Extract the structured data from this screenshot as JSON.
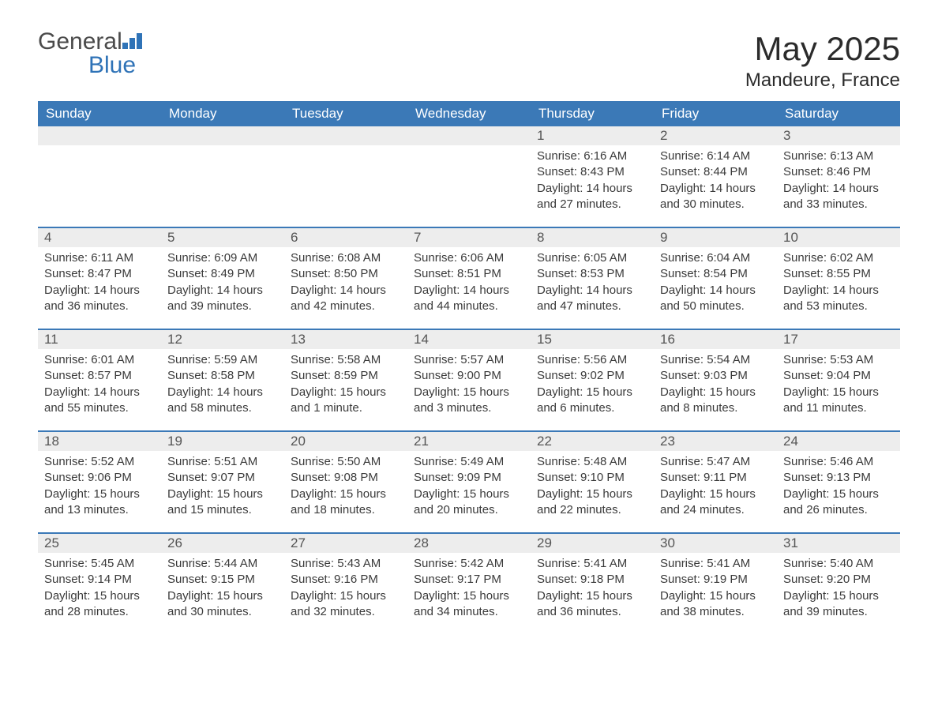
{
  "brand": {
    "name_part1": "General",
    "name_part2": "Blue"
  },
  "title": "May 2025",
  "location": "Mandeure, France",
  "colors": {
    "header_bg": "#3b79b7",
    "header_text": "#ffffff",
    "row_border": "#3b79b7",
    "daynum_bg": "#ededed",
    "daynum_text": "#555555",
    "body_text": "#3a3a3a",
    "brand_gray": "#4a4a4a",
    "brand_blue": "#2f73b7",
    "page_bg": "#ffffff"
  },
  "typography": {
    "title_fontsize": 42,
    "location_fontsize": 24,
    "header_fontsize": 17,
    "daynum_fontsize": 17,
    "body_fontsize": 15
  },
  "layout": {
    "columns": 7,
    "rows": 5,
    "leading_blanks": 4
  },
  "weekdays": [
    "Sunday",
    "Monday",
    "Tuesday",
    "Wednesday",
    "Thursday",
    "Friday",
    "Saturday"
  ],
  "days": [
    {
      "n": 1,
      "sunrise": "6:16 AM",
      "sunset": "8:43 PM",
      "daylight": "14 hours and 27 minutes."
    },
    {
      "n": 2,
      "sunrise": "6:14 AM",
      "sunset": "8:44 PM",
      "daylight": "14 hours and 30 minutes."
    },
    {
      "n": 3,
      "sunrise": "6:13 AM",
      "sunset": "8:46 PM",
      "daylight": "14 hours and 33 minutes."
    },
    {
      "n": 4,
      "sunrise": "6:11 AM",
      "sunset": "8:47 PM",
      "daylight": "14 hours and 36 minutes."
    },
    {
      "n": 5,
      "sunrise": "6:09 AM",
      "sunset": "8:49 PM",
      "daylight": "14 hours and 39 minutes."
    },
    {
      "n": 6,
      "sunrise": "6:08 AM",
      "sunset": "8:50 PM",
      "daylight": "14 hours and 42 minutes."
    },
    {
      "n": 7,
      "sunrise": "6:06 AM",
      "sunset": "8:51 PM",
      "daylight": "14 hours and 44 minutes."
    },
    {
      "n": 8,
      "sunrise": "6:05 AM",
      "sunset": "8:53 PM",
      "daylight": "14 hours and 47 minutes."
    },
    {
      "n": 9,
      "sunrise": "6:04 AM",
      "sunset": "8:54 PM",
      "daylight": "14 hours and 50 minutes."
    },
    {
      "n": 10,
      "sunrise": "6:02 AM",
      "sunset": "8:55 PM",
      "daylight": "14 hours and 53 minutes."
    },
    {
      "n": 11,
      "sunrise": "6:01 AM",
      "sunset": "8:57 PM",
      "daylight": "14 hours and 55 minutes."
    },
    {
      "n": 12,
      "sunrise": "5:59 AM",
      "sunset": "8:58 PM",
      "daylight": "14 hours and 58 minutes."
    },
    {
      "n": 13,
      "sunrise": "5:58 AM",
      "sunset": "8:59 PM",
      "daylight": "15 hours and 1 minute."
    },
    {
      "n": 14,
      "sunrise": "5:57 AM",
      "sunset": "9:00 PM",
      "daylight": "15 hours and 3 minutes."
    },
    {
      "n": 15,
      "sunrise": "5:56 AM",
      "sunset": "9:02 PM",
      "daylight": "15 hours and 6 minutes."
    },
    {
      "n": 16,
      "sunrise": "5:54 AM",
      "sunset": "9:03 PM",
      "daylight": "15 hours and 8 minutes."
    },
    {
      "n": 17,
      "sunrise": "5:53 AM",
      "sunset": "9:04 PM",
      "daylight": "15 hours and 11 minutes."
    },
    {
      "n": 18,
      "sunrise": "5:52 AM",
      "sunset": "9:06 PM",
      "daylight": "15 hours and 13 minutes."
    },
    {
      "n": 19,
      "sunrise": "5:51 AM",
      "sunset": "9:07 PM",
      "daylight": "15 hours and 15 minutes."
    },
    {
      "n": 20,
      "sunrise": "5:50 AM",
      "sunset": "9:08 PM",
      "daylight": "15 hours and 18 minutes."
    },
    {
      "n": 21,
      "sunrise": "5:49 AM",
      "sunset": "9:09 PM",
      "daylight": "15 hours and 20 minutes."
    },
    {
      "n": 22,
      "sunrise": "5:48 AM",
      "sunset": "9:10 PM",
      "daylight": "15 hours and 22 minutes."
    },
    {
      "n": 23,
      "sunrise": "5:47 AM",
      "sunset": "9:11 PM",
      "daylight": "15 hours and 24 minutes."
    },
    {
      "n": 24,
      "sunrise": "5:46 AM",
      "sunset": "9:13 PM",
      "daylight": "15 hours and 26 minutes."
    },
    {
      "n": 25,
      "sunrise": "5:45 AM",
      "sunset": "9:14 PM",
      "daylight": "15 hours and 28 minutes."
    },
    {
      "n": 26,
      "sunrise": "5:44 AM",
      "sunset": "9:15 PM",
      "daylight": "15 hours and 30 minutes."
    },
    {
      "n": 27,
      "sunrise": "5:43 AM",
      "sunset": "9:16 PM",
      "daylight": "15 hours and 32 minutes."
    },
    {
      "n": 28,
      "sunrise": "5:42 AM",
      "sunset": "9:17 PM",
      "daylight": "15 hours and 34 minutes."
    },
    {
      "n": 29,
      "sunrise": "5:41 AM",
      "sunset": "9:18 PM",
      "daylight": "15 hours and 36 minutes."
    },
    {
      "n": 30,
      "sunrise": "5:41 AM",
      "sunset": "9:19 PM",
      "daylight": "15 hours and 38 minutes."
    },
    {
      "n": 31,
      "sunrise": "5:40 AM",
      "sunset": "9:20 PM",
      "daylight": "15 hours and 39 minutes."
    }
  ],
  "labels": {
    "sunrise": "Sunrise:",
    "sunset": "Sunset:",
    "daylight": "Daylight:"
  }
}
